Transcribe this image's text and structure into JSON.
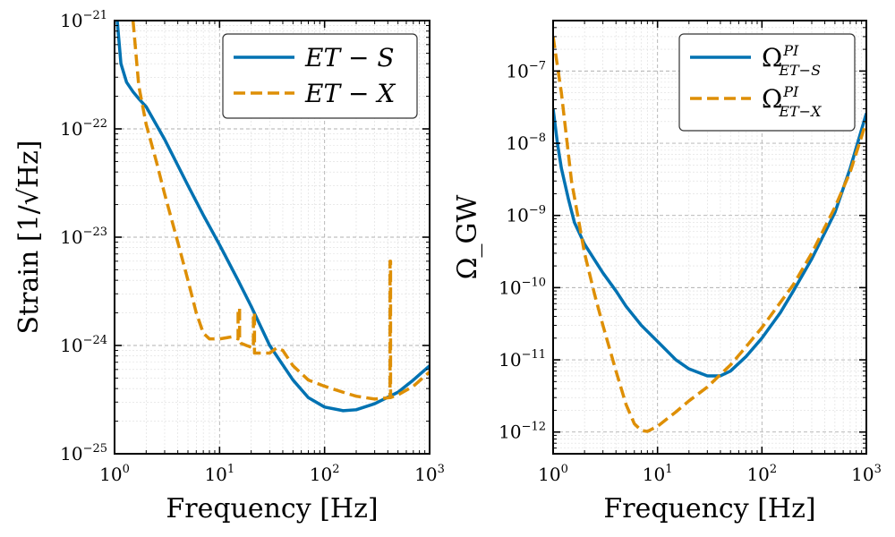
{
  "chart_data": [
    {
      "type": "line",
      "id": "strain",
      "xlabel": "Frequency [Hz]",
      "ylabel": "Strain [1/√Hz]",
      "xscale": "log",
      "yscale": "log",
      "xlim": [
        1,
        1000
      ],
      "ylim": [
        1e-25,
        1e-21
      ],
      "x_ticks": [
        {
          "base": "10",
          "exp": "0"
        },
        {
          "base": "10",
          "exp": "1"
        },
        {
          "base": "10",
          "exp": "2"
        },
        {
          "base": "10",
          "exp": "3"
        }
      ],
      "y_ticks": [
        {
          "base": "10",
          "exp": "−25"
        },
        {
          "base": "10",
          "exp": "−24"
        },
        {
          "base": "10",
          "exp": "−23"
        },
        {
          "base": "10",
          "exp": "−22"
        },
        {
          "base": "10",
          "exp": "−21"
        }
      ],
      "grid": true,
      "legend_position": "top-right",
      "series": [
        {
          "name": "ET − S",
          "style": "solid",
          "color": "#0072b2",
          "x": [
            1.06,
            1.15,
            1.3,
            1.5,
            1.7,
            2,
            3,
            5,
            7,
            10,
            15,
            20,
            30,
            50,
            70,
            100,
            150,
            200,
            300,
            500,
            700,
            1000
          ],
          "y": [
            1e-21,
            4e-22,
            2.7e-22,
            2.2e-22,
            1.9e-22,
            1.6e-22,
            8e-23,
            3e-23,
            1.6e-23,
            8.5e-24,
            4e-24,
            2.3e-24,
            1e-24,
            4.8e-25,
            3.3e-25,
            2.7e-25,
            2.5e-25,
            2.55e-25,
            2.9e-25,
            3.7e-25,
            4.8e-25,
            6.5e-25
          ]
        },
        {
          "name": "ET − X",
          "style": "dashed",
          "color": "#de8f05",
          "x": [
            1.5,
            1.7,
            2,
            2.5,
            3,
            4,
            5,
            6,
            7,
            8,
            10,
            13,
            15,
            15.01,
            15.5,
            15.51,
            16,
            18,
            21,
            21.01,
            21.5,
            21.51,
            25,
            30,
            35,
            40,
            50,
            70,
            100,
            150,
            200,
            300,
            420,
            420.01,
            425,
            425.01,
            500,
            700,
            1000
          ],
          "y": [
            1e-21,
            2.5e-22,
            1.1e-22,
            5e-23,
            2.5e-23,
            9e-24,
            4e-24,
            2e-24,
            1.3e-24,
            1.15e-24,
            1.15e-24,
            1.2e-24,
            1.15e-24,
            2.2e-24,
            2.2e-24,
            1.1e-24,
            1.05e-24,
            1e-24,
            9.5e-25,
            2e-24,
            2e-24,
            8.5e-25,
            8.5e-25,
            8.5e-25,
            9.5e-25,
            9e-25,
            6.5e-25,
            4.8e-25,
            4.2e-25,
            3.7e-25,
            3.4e-25,
            3.2e-25,
            3.3e-25,
            6e-24,
            6e-24,
            3.3e-25,
            3.5e-25,
            4.2e-25,
            5.7e-25
          ]
        }
      ]
    },
    {
      "type": "line",
      "id": "omega",
      "xlabel": "Frequency [Hz]",
      "ylabel": "Ω_GW",
      "xscale": "log",
      "yscale": "log",
      "xlim": [
        1,
        1000
      ],
      "ylim": [
        5e-13,
        5e-07
      ],
      "x_ticks": [
        {
          "base": "10",
          "exp": "0"
        },
        {
          "base": "10",
          "exp": "1"
        },
        {
          "base": "10",
          "exp": "2"
        },
        {
          "base": "10",
          "exp": "3"
        }
      ],
      "y_ticks": [
        {
          "base": "10",
          "exp": "−12"
        },
        {
          "base": "10",
          "exp": "−11"
        },
        {
          "base": "10",
          "exp": "−10"
        },
        {
          "base": "10",
          "exp": "−9"
        },
        {
          "base": "10",
          "exp": "−8"
        },
        {
          "base": "10",
          "exp": "−7"
        }
      ],
      "grid": true,
      "legend_position": "top-right",
      "series": [
        {
          "name": "Ω",
          "name_sup": "PI",
          "name_sub": "ET−S",
          "style": "solid",
          "color": "#0072b2",
          "x": [
            1,
            1.1,
            1.2,
            1.4,
            1.6,
            2,
            3,
            4,
            5,
            7,
            10,
            15,
            20,
            30,
            40,
            50,
            70,
            100,
            150,
            200,
            300,
            500,
            700,
            1000
          ],
          "y": [
            3e-08,
            1e-08,
            4.5e-09,
            1.7e-09,
            8e-10,
            4e-10,
            1.6e-10,
            9e-11,
            5.5e-11,
            3e-11,
            1.8e-11,
            1e-11,
            7.5e-12,
            6e-12,
            6e-12,
            7e-12,
            1.1e-11,
            2e-11,
            4.5e-11,
            9e-11,
            2.5e-10,
            1.1e-09,
            4.5e-09,
            2.6e-08
          ]
        },
        {
          "name": "Ω",
          "name_sup": "PI",
          "name_sub": "ET−X",
          "style": "dashed",
          "color": "#de8f05",
          "x": [
            1,
            1.2,
            1.5,
            2,
            2.5,
            3,
            4,
            5,
            6,
            7,
            8,
            10,
            15,
            20,
            30,
            50,
            70,
            100,
            200,
            300,
            500,
            700,
            1000
          ],
          "y": [
            3e-07,
            5e-08,
            3e-09,
            3e-10,
            8e-11,
            3e-11,
            7e-12,
            2.4e-12,
            1.3e-12,
            1.05e-12,
            1.02e-12,
            1.2e-12,
            1.9e-12,
            2.7e-12,
            4.2e-12,
            8.5e-12,
            1.5e-11,
            2.8e-11,
            1.1e-10,
            3e-10,
            1.3e-09,
            4e-09,
            2e-08
          ]
        }
      ]
    }
  ]
}
